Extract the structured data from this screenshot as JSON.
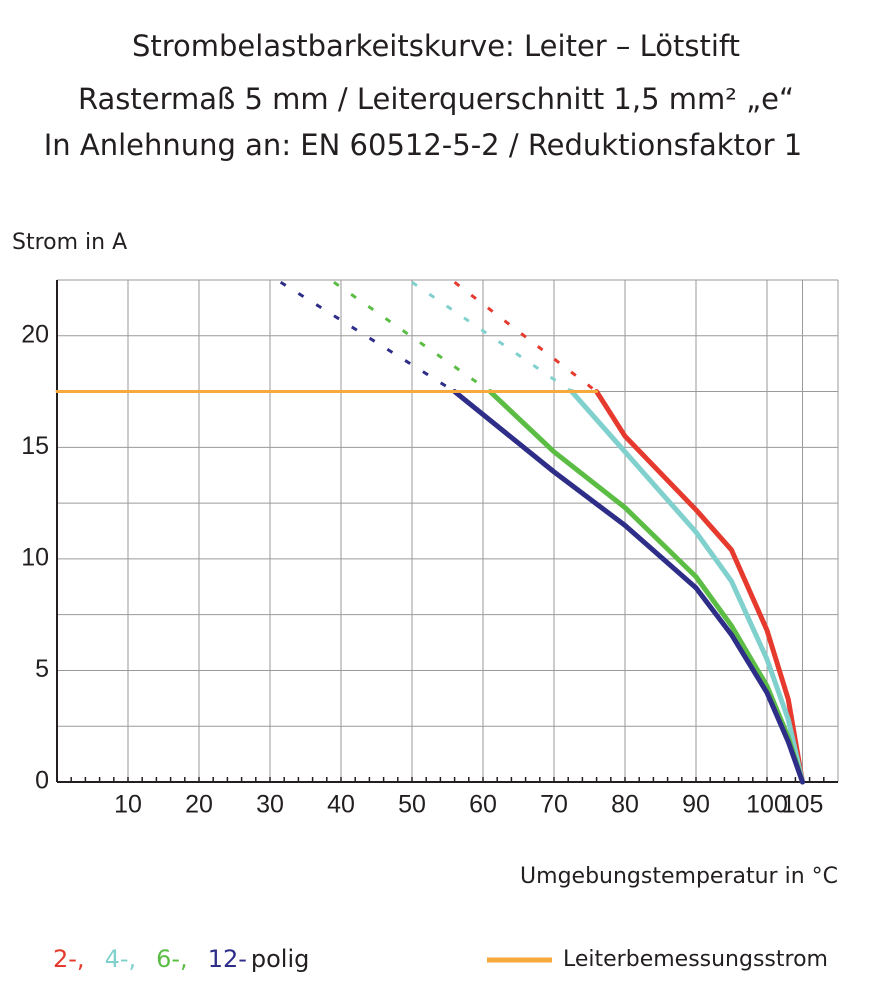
{
  "chart_data": {
    "type": "line",
    "title": [
      "Strombelastbarkeitskurve: Leiter – Lötstift",
      "Rastermaß 5 mm / Leiterquerschnitt 1,5 mm² „e“",
      "In Anlehnung an: EN 60512-5-2 / Reduktionsfaktor 1"
    ],
    "y_label": "Strom in A",
    "x_label": "Umgebungstemperatur in °C",
    "xlim": [
      0,
      110
    ],
    "ylim": [
      0,
      22.5
    ],
    "xticks": [
      10,
      20,
      30,
      40,
      50,
      60,
      70,
      80,
      90,
      100,
      105
    ],
    "yticks": [
      0,
      5,
      10,
      15,
      20
    ],
    "minor_yticks": [
      2.5,
      7.5,
      12.5,
      17.5,
      22.5
    ],
    "grid": true,
    "legend_suffix": "polig",
    "series": [
      {
        "name": "2-,",
        "color": "#e63a2e",
        "x": [
          76,
          80,
          90,
          95,
          100,
          103,
          105
        ],
        "values": [
          17.5,
          15.5,
          12.2,
          10.4,
          6.8,
          3.7,
          0
        ],
        "projection": {
          "x": [
            56,
            76
          ],
          "values": [
            22.4,
            17.5
          ]
        }
      },
      {
        "name": "4-,",
        "color": "#80d0cd",
        "x": [
          72.5,
          80,
          90,
          95,
          100,
          103,
          105
        ],
        "values": [
          17.5,
          14.8,
          11.2,
          9.0,
          5.5,
          2.8,
          0
        ],
        "projection": {
          "x": [
            50,
            72.5
          ],
          "values": [
            22.4,
            17.5
          ]
        }
      },
      {
        "name": "6-,",
        "color": "#5cbd45",
        "x": [
          61,
          70,
          80,
          90,
          95,
          100,
          103,
          105
        ],
        "values": [
          17.5,
          14.8,
          12.3,
          9.2,
          7.0,
          4.3,
          2.0,
          0
        ],
        "projection": {
          "x": [
            39,
            61
          ],
          "values": [
            22.4,
            17.5
          ]
        }
      },
      {
        "name": "12-",
        "color": "#2e2e88",
        "x": [
          56,
          70,
          80,
          90,
          95,
          100,
          103,
          105
        ],
        "values": [
          17.5,
          13.9,
          11.5,
          8.7,
          6.6,
          4.0,
          1.8,
          0
        ],
        "projection": {
          "x": [
            31.5,
            56
          ],
          "values": [
            22.4,
            17.5
          ]
        }
      },
      {
        "name": "Leiterbemessungsstrom",
        "color": "#f7a93b",
        "x": [
          0,
          76
        ],
        "values": [
          17.5,
          17.5
        ]
      }
    ]
  }
}
